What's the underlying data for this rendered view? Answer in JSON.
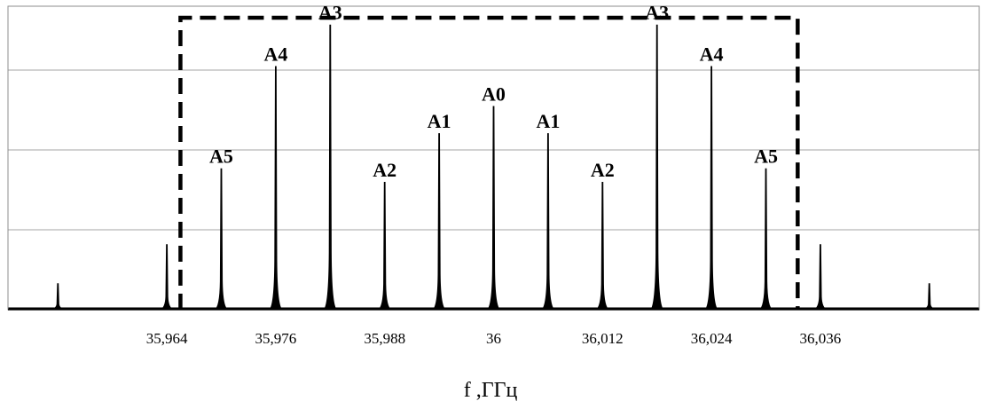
{
  "chart_data": {
    "type": "line",
    "title": "",
    "xlabel": "f ,ГГц",
    "ylabel": "",
    "xlim": [
      35.9465,
      36.0535
    ],
    "ylim": [
      0,
      3.8
    ],
    "grid": "horizontal",
    "x_ticks": [
      {
        "value": 35.964,
        "label": "35,964"
      },
      {
        "value": 35.976,
        "label": "35,976"
      },
      {
        "value": 35.988,
        "label": "35,988"
      },
      {
        "value": 36.0,
        "label": "36"
      },
      {
        "value": 36.012,
        "label": "36,012"
      },
      {
        "value": 36.024,
        "label": "36,024"
      },
      {
        "value": 36.036,
        "label": "36,036"
      }
    ],
    "y_grid_values": [
      1,
      2,
      3
    ],
    "selection_box": {
      "x_start": 35.9655,
      "x_end": 36.0335
    },
    "peaks": [
      {
        "x": 35.952,
        "y": 0.33,
        "label": ""
      },
      {
        "x": 35.964,
        "y": 0.82,
        "label": ""
      },
      {
        "x": 35.97,
        "y": 1.77,
        "label": "А5"
      },
      {
        "x": 35.976,
        "y": 3.05,
        "label": "А4"
      },
      {
        "x": 35.982,
        "y": 3.57,
        "label": "А3"
      },
      {
        "x": 35.988,
        "y": 1.6,
        "label": "А2"
      },
      {
        "x": 35.994,
        "y": 2.21,
        "label": "А1"
      },
      {
        "x": 36.0,
        "y": 2.55,
        "label": "А0"
      },
      {
        "x": 36.006,
        "y": 2.21,
        "label": "А1"
      },
      {
        "x": 36.012,
        "y": 1.6,
        "label": "А2"
      },
      {
        "x": 36.018,
        "y": 3.57,
        "label": "А3"
      },
      {
        "x": 36.024,
        "y": 3.05,
        "label": "А4"
      },
      {
        "x": 36.03,
        "y": 1.77,
        "label": "А5"
      },
      {
        "x": 36.036,
        "y": 0.82,
        "label": ""
      },
      {
        "x": 36.048,
        "y": 0.33,
        "label": ""
      }
    ]
  }
}
